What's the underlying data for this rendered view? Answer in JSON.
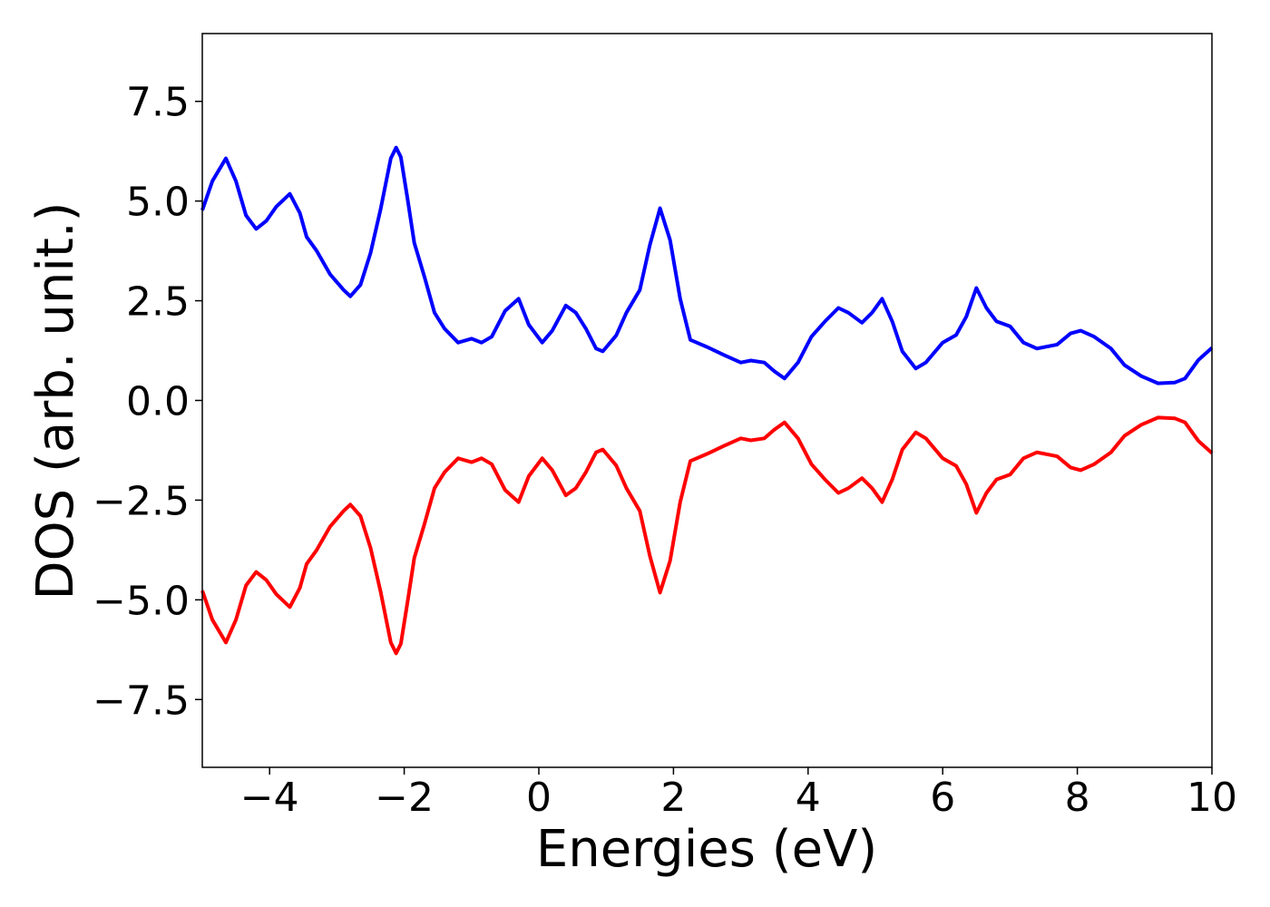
{
  "chart_data": {
    "type": "line",
    "x_label": "Energies (eV)",
    "y_label": "DOS (arb. unit.)",
    "xlim": [
      -5,
      10
    ],
    "ylim": [
      -9.2,
      9.2
    ],
    "xticks": [
      {
        "value": -4,
        "label": "−4"
      },
      {
        "value": -2,
        "label": "−2"
      },
      0,
      2,
      4,
      6,
      8,
      10
    ],
    "yticks": [
      {
        "value": -7.5,
        "label": "−7.5"
      },
      {
        "value": -5,
        "label": "−5.0"
      },
      {
        "value": -2.5,
        "label": "−2.5"
      },
      {
        "value": 0,
        "label": "0.0"
      },
      2.5,
      {
        "value": 5,
        "label": "5.0"
      },
      7.5
    ],
    "grid": false,
    "x": [
      -5,
      -4.85,
      -4.65,
      -4.5,
      -4.35,
      -4.2,
      -4.05,
      -3.9,
      -3.7,
      -3.55,
      -3.45,
      -3.3,
      -3.1,
      -2.9,
      -2.8,
      -2.65,
      -2.5,
      -2.35,
      -2.2,
      -2.12,
      -2.05,
      -1.95,
      -1.85,
      -1.7,
      -1.55,
      -1.4,
      -1.2,
      -1.0,
      -0.85,
      -0.7,
      -0.5,
      -0.3,
      -0.15,
      0.05,
      0.2,
      0.4,
      0.55,
      0.7,
      0.85,
      0.95,
      1.15,
      1.3,
      1.5,
      1.65,
      1.8,
      1.95,
      2.1,
      2.25,
      2.5,
      2.75,
      3.0,
      3.15,
      3.35,
      3.5,
      3.65,
      3.85,
      4.05,
      4.25,
      4.45,
      4.6,
      4.8,
      4.95,
      5.1,
      5.25,
      5.4,
      5.6,
      5.75,
      6.0,
      6.2,
      6.35,
      6.5,
      6.65,
      6.8,
      7.0,
      7.2,
      7.4,
      7.7,
      7.9,
      8.05,
      8.25,
      8.5,
      8.7,
      8.95,
      9.2,
      9.45,
      9.6,
      9.8,
      10
    ],
    "series": [
      {
        "color": "#0000ff",
        "values": [
          4.77,
          5.5,
          6.07,
          5.5,
          4.64,
          4.3,
          4.5,
          4.86,
          5.18,
          4.7,
          4.1,
          3.75,
          3.16,
          2.77,
          2.61,
          2.9,
          3.7,
          4.8,
          6.07,
          6.34,
          6.1,
          5.05,
          3.95,
          3.1,
          2.2,
          1.8,
          1.45,
          1.55,
          1.45,
          1.6,
          2.25,
          2.55,
          1.9,
          1.45,
          1.75,
          2.38,
          2.2,
          1.8,
          1.3,
          1.23,
          1.63,
          2.2,
          2.77,
          3.9,
          4.82,
          4.02,
          2.55,
          1.52,
          1.34,
          1.14,
          0.95,
          1.0,
          0.95,
          0.73,
          0.55,
          0.95,
          1.6,
          1.98,
          2.32,
          2.2,
          1.95,
          2.2,
          2.55,
          1.98,
          1.23,
          0.8,
          0.95,
          1.45,
          1.64,
          2.1,
          2.82,
          2.32,
          1.98,
          1.86,
          1.45,
          1.3,
          1.4,
          1.68,
          1.75,
          1.6,
          1.3,
          0.89,
          0.61,
          0.43,
          0.45,
          0.55,
          1.02,
          1.32
        ]
      },
      {
        "color": "#ff0000",
        "values": [
          -4.77,
          -5.5,
          -6.07,
          -5.5,
          -4.64,
          -4.3,
          -4.5,
          -4.86,
          -5.18,
          -4.7,
          -4.1,
          -3.75,
          -3.16,
          -2.77,
          -2.61,
          -2.9,
          -3.7,
          -4.8,
          -6.07,
          -6.34,
          -6.1,
          -5.05,
          -3.95,
          -3.1,
          -2.2,
          -1.8,
          -1.45,
          -1.55,
          -1.45,
          -1.6,
          -2.25,
          -2.55,
          -1.9,
          -1.45,
          -1.75,
          -2.38,
          -2.2,
          -1.8,
          -1.3,
          -1.23,
          -1.63,
          -2.2,
          -2.77,
          -3.9,
          -4.82,
          -4.02,
          -2.55,
          -1.52,
          -1.34,
          -1.14,
          -0.95,
          -1.0,
          -0.95,
          -0.73,
          -0.55,
          -0.95,
          -1.6,
          -1.98,
          -2.32,
          -2.2,
          -1.95,
          -2.2,
          -2.55,
          -1.98,
          -1.23,
          -0.8,
          -0.95,
          -1.45,
          -1.64,
          -2.1,
          -2.82,
          -2.32,
          -1.98,
          -1.86,
          -1.45,
          -1.3,
          -1.4,
          -1.68,
          -1.75,
          -1.6,
          -1.3,
          -0.89,
          -0.61,
          -0.43,
          -0.45,
          -0.55,
          -1.02,
          -1.32
        ]
      }
    ]
  }
}
